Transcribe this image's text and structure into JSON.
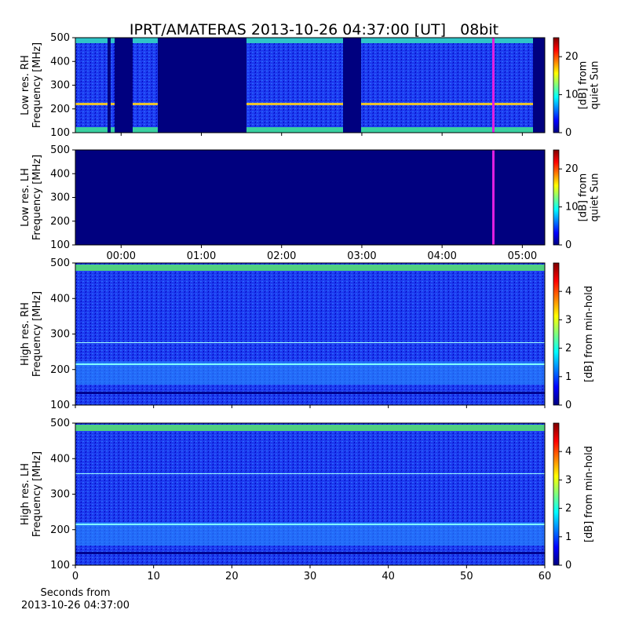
{
  "chart_data": [
    {
      "type": "heatmap",
      "title": "IPRT/AMATERAS 2013-10-26 04:37:00 [UT]   08bit",
      "ylabel": [
        "Low res. RH",
        "Frequency [MHz]"
      ],
      "ylim": [
        100,
        500
      ],
      "yticks": [
        100,
        200,
        300,
        400,
        500
      ],
      "xlim": [
        -0.57,
        5.28
      ],
      "xticks": [
        0,
        1,
        2,
        3,
        4,
        5
      ],
      "xticklabels": false,
      "colorbar_label": [
        "[dB] from",
        "quiet Sun"
      ],
      "clim": [
        0,
        25
      ],
      "cticks": [
        0,
        10,
        20
      ]
    },
    {
      "type": "heatmap",
      "ylabel": [
        "Low res. LH",
        "Frequency [MHz]"
      ],
      "ylim": [
        100,
        500
      ],
      "yticks": [
        100,
        200,
        300,
        400,
        500
      ],
      "xlim": [
        -0.57,
        5.28
      ],
      "xticks": [
        {
          "value": 0,
          "label": "00:00"
        },
        {
          "value": 1,
          "label": "01:00"
        },
        {
          "value": 2,
          "label": "02:00"
        },
        {
          "value": 3,
          "label": "03:00"
        },
        {
          "value": 4,
          "label": "04:00"
        },
        {
          "value": 5,
          "label": "05:00"
        }
      ],
      "colorbar_label": [
        "[dB] from",
        "quiet Sun"
      ],
      "clim": [
        0,
        25
      ],
      "cticks": [
        0,
        10,
        20
      ]
    },
    {
      "type": "heatmap",
      "ylabel": [
        "High res. RH",
        "Frequency [MHz]"
      ],
      "ylim": [
        100,
        500
      ],
      "yticks": [
        100,
        200,
        300,
        400,
        500
      ],
      "xlim": [
        0,
        60
      ],
      "xticks": [
        0,
        10,
        20,
        30,
        40,
        50,
        60
      ],
      "xticklabels": false,
      "colorbar_label": [
        "[dB] from min-hold"
      ],
      "clim": [
        0,
        5
      ],
      "cticks": [
        0,
        1,
        2,
        3,
        4
      ]
    },
    {
      "type": "heatmap",
      "ylabel": [
        "High res. LH",
        "Frequency [MHz]"
      ],
      "ylim": [
        100,
        500
      ],
      "yticks": [
        100,
        200,
        300,
        400,
        500
      ],
      "xlim": [
        0,
        60
      ],
      "xticks": [
        0,
        10,
        20,
        30,
        40,
        50,
        60
      ],
      "xlabel": [
        "Seconds from",
        "2013-10-26 04:37:00"
      ],
      "colorbar_label": [
        "[dB] from min-hold"
      ],
      "clim": [
        0,
        5
      ],
      "cticks": [
        0,
        1,
        2,
        3,
        4
      ]
    }
  ]
}
